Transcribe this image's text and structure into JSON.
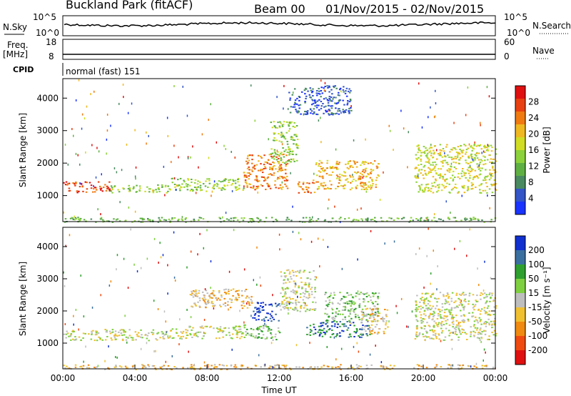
{
  "header": {
    "title": "Buckland Park (fitACF)",
    "beam": "Beam 00",
    "date_range": "01/Nov/2015 - 02/Nov/2015"
  },
  "strips": {
    "nsky": {
      "label": "N.Sky",
      "ticks": [
        "10^5",
        "10^0"
      ],
      "right_label": "N.Search",
      "right_ticks": [
        "10^5",
        "10^0"
      ]
    },
    "freq": {
      "label_line1": "Freq.",
      "label_line2": "[MHz]",
      "ticks": [
        "18",
        "8"
      ],
      "right_label": "Nave",
      "right_ticks": [
        "60",
        "0"
      ]
    },
    "cpid": {
      "label": "CPID",
      "value": "normal (fast) 151"
    }
  },
  "chart_data": [
    {
      "type": "heatmap",
      "name": "power",
      "ylabel": "Slant Range [km]",
      "yticks": [
        "1000",
        "2000",
        "3000",
        "4000"
      ],
      "ylim": [
        200,
        4600
      ],
      "xlim": [
        0,
        24
      ],
      "colorbar_label": "Power [dB]",
      "colorbar_ticks": [
        "4",
        "8",
        "12",
        "16",
        "20",
        "24",
        "28"
      ],
      "colors": [
        "#1a33ff",
        "#3355c8",
        "#4a8a60",
        "#5fb043",
        "#8cd23a",
        "#d0dd22",
        "#f0b820",
        "#f07a10",
        "#e84010",
        "#e01010"
      ],
      "bands": [
        {
          "x": [
            0.0,
            2.6
          ],
          "y": [
            1100,
            1450
          ],
          "level": 8
        },
        {
          "x": [
            2.6,
            6.0
          ],
          "y": [
            1100,
            1350
          ],
          "level": 4
        },
        {
          "x": [
            6.0,
            10.0
          ],
          "y": [
            1150,
            1550
          ],
          "level": 4
        },
        {
          "x": [
            10.0,
            12.5
          ],
          "y": [
            1200,
            2300
          ],
          "level": 7
        },
        {
          "x": [
            11.5,
            13.0
          ],
          "y": [
            2000,
            3300
          ],
          "level": 4
        },
        {
          "x": [
            13.0,
            14.0
          ],
          "y": [
            1100,
            1500
          ],
          "level": 7
        },
        {
          "x": [
            14.0,
            17.5
          ],
          "y": [
            1200,
            2100
          ],
          "level": 6
        },
        {
          "x": [
            12.5,
            16.0
          ],
          "y": [
            3500,
            4400
          ],
          "level": 1
        },
        {
          "x": [
            19.5,
            24.0
          ],
          "y": [
            1100,
            2600
          ],
          "level": 5
        },
        {
          "x": [
            0.0,
            24.0
          ],
          "y": [
            200,
            350
          ],
          "level": 3
        }
      ]
    },
    {
      "type": "heatmap",
      "name": "velocity",
      "ylabel": "Slant Range [km]",
      "yticks": [
        "1000",
        "2000",
        "3000",
        "4000"
      ],
      "ylim": [
        200,
        4600
      ],
      "xlim": [
        0,
        24
      ],
      "xlabel": "Time UT",
      "xticks": [
        "00:00",
        "04:00",
        "08:00",
        "12:00",
        "16:00",
        "20:00",
        "00:00"
      ],
      "colorbar_label": "Velocity [m s⁻¹]",
      "colorbar_ticks": [
        "200",
        "100",
        "50",
        "15",
        "-15",
        "-50",
        "-100",
        "-200"
      ],
      "colors": [
        "#1030d0",
        "#3a70a0",
        "#2ea02e",
        "#7fd040",
        "#bebebe",
        "#f0c030",
        "#f08a10",
        "#f04a10",
        "#e01010"
      ],
      "bands": [
        {
          "x": [
            0.0,
            6.0
          ],
          "y": [
            1100,
            1450
          ],
          "level": 4
        },
        {
          "x": [
            6.0,
            10.0
          ],
          "y": [
            1150,
            1550
          ],
          "level": 4
        },
        {
          "x": [
            7.0,
            10.5
          ],
          "y": [
            2100,
            2700
          ],
          "level": 5
        },
        {
          "x": [
            10.5,
            12.0
          ],
          "y": [
            1700,
            2300
          ],
          "level": 0
        },
        {
          "x": [
            10.0,
            12.0
          ],
          "y": [
            1100,
            1600
          ],
          "level": 3
        },
        {
          "x": [
            12.0,
            14.0
          ],
          "y": [
            2000,
            3300
          ],
          "level": 4
        },
        {
          "x": [
            13.5,
            17.0
          ],
          "y": [
            1200,
            1700
          ],
          "level": 1
        },
        {
          "x": [
            14.5,
            17.5
          ],
          "y": [
            1700,
            2600
          ],
          "level": 3
        },
        {
          "x": [
            16.5,
            18.0
          ],
          "y": [
            1300,
            2100
          ],
          "level": 5
        },
        {
          "x": [
            19.5,
            24.0
          ],
          "y": [
            1100,
            2600
          ],
          "level": 4
        },
        {
          "x": [
            0.0,
            24.0
          ],
          "y": [
            200,
            350
          ],
          "level": 5
        }
      ]
    }
  ]
}
